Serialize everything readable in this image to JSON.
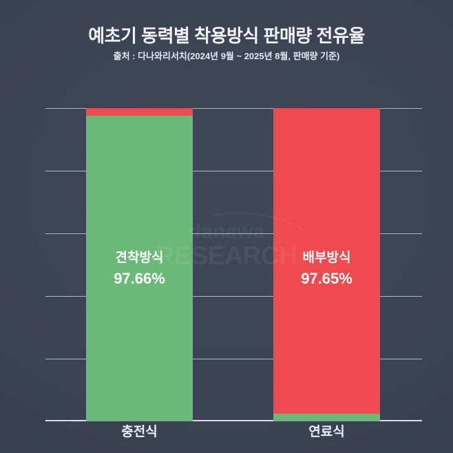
{
  "header": {
    "title": "예초기 동력별 착용방식 판매량 전유율",
    "source": "출처 : 다나와리서치(2024년 9월 ~ 2025년 8월, 판매량 기준)"
  },
  "watermark": {
    "brand": "danawa",
    "research": "RESEARCH"
  },
  "colors": {
    "background_center": "#3f4659",
    "background_edge": "#353b4c",
    "series_green": "#6cb878",
    "series_red": "#ef4a4f",
    "gridline": "#ccd3e0",
    "text_primary": "#f2f4f9"
  },
  "chart_data": {
    "type": "bar",
    "subtype": "stacked-100",
    "title": "예초기 동력별 착용방식 판매량 전유율",
    "source_note": "출처 : 다나와리서치(2024년 9월 ~ 2025년 8월, 판매량 기준)",
    "value_unit": "%",
    "ylim": [
      0,
      100
    ],
    "grid": {
      "horizontal_lines": 6
    },
    "legend": "none",
    "categories": [
      {
        "label": "충전식",
        "slug": "battery-type"
      },
      {
        "label": "연료식",
        "slug": "fuel-type"
      }
    ],
    "series": [
      {
        "name": "견착방식",
        "slug": "shoulder-strap-type",
        "color": "#6cb878",
        "values": [
          97.66,
          2.35
        ]
      },
      {
        "name": "배부방식",
        "slug": "backpack-type",
        "color": "#ef4a4f",
        "values": [
          2.34,
          97.65
        ]
      }
    ],
    "labels": [
      {
        "category_index": 0,
        "series_name": "견착방식",
        "value_text": "97.66%"
      },
      {
        "category_index": 1,
        "series_name": "배부방식",
        "value_text": "97.65%"
      }
    ]
  }
}
